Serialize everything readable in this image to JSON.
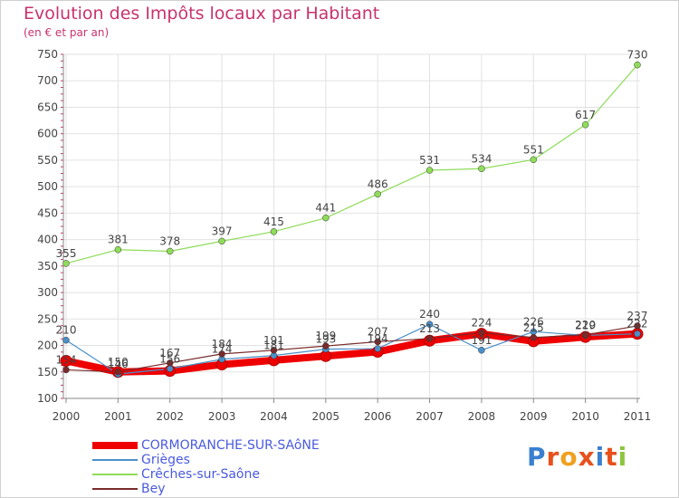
{
  "chart_data": {
    "type": "line",
    "title": "Evolution des Impôts locaux par Habitant",
    "subtitle": "(en € et par an)",
    "xlabel": "",
    "ylabel": "",
    "ylim": [
      100,
      750
    ],
    "yticks": [
      100,
      150,
      200,
      250,
      300,
      350,
      400,
      450,
      500,
      550,
      600,
      650,
      700,
      750
    ],
    "categories": [
      "2000",
      "2001",
      "2002",
      "2003",
      "2004",
      "2005",
      "2006",
      "2007",
      "2008",
      "2009",
      "2010",
      "2011"
    ],
    "grid": true,
    "series": [
      {
        "name": "CORMORANCHE-SUR-SAôNE",
        "color": "#ee0000",
        "values": [
          171,
          150,
          152,
          164,
          172,
          180,
          188,
          209,
          222,
          208,
          216,
          222
        ],
        "labels": false
      },
      {
        "name": "Grièges",
        "color": "#4a90c8",
        "values": [
          210,
          146,
          156,
          174,
          181,
          193,
          194,
          240,
          191,
          226,
          219,
          222
        ],
        "labels": true
      },
      {
        "name": "Crêches-sur-Saône",
        "color": "#8fdc5a",
        "values": [
          355,
          381,
          378,
          397,
          415,
          441,
          486,
          531,
          534,
          551,
          617,
          730
        ],
        "labels": true
      },
      {
        "name": "Bey",
        "color": "#7a2a2a",
        "values": [
          154,
          150,
          167,
          184,
          191,
          199,
          207,
          213,
          224,
          215,
          220,
          237
        ],
        "labels": true
      }
    ]
  },
  "legend": {
    "items": [
      {
        "label": "CORMORANCHE-SUR-SAôNE",
        "color": "#ee0000",
        "thickness": 8
      },
      {
        "label": "Grièges",
        "color": "#4a90c8",
        "thickness": 2
      },
      {
        "label": "Crêches-sur-Saône",
        "color": "#8fdc5a",
        "thickness": 2
      },
      {
        "label": "Bey",
        "color": "#7a2a2a",
        "thickness": 2
      }
    ]
  },
  "logo": {
    "text": "Proxiti",
    "colors": [
      "#3a7fd0",
      "#e8501c",
      "#f0a020",
      "#e8501c",
      "#3a7fd0",
      "#e8501c",
      "#8dc63f"
    ]
  }
}
